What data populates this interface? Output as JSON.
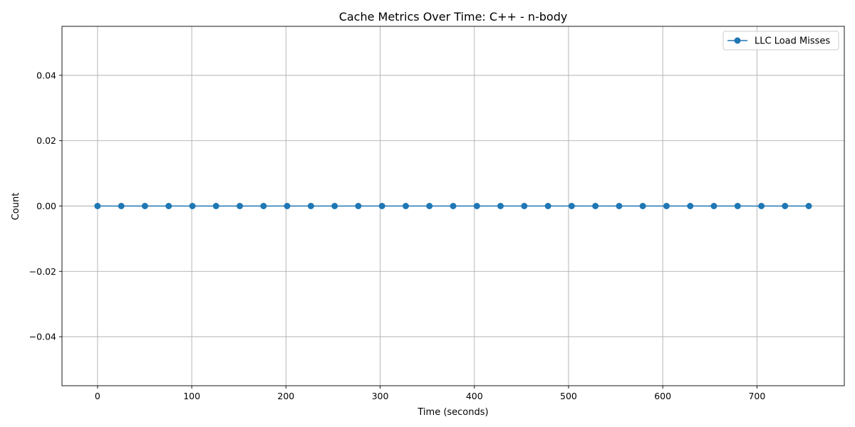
{
  "chart_data": {
    "type": "line",
    "title": "Cache Metrics Over Time: C++ - n-body",
    "xlabel": "Time (seconds)",
    "ylabel": "Count",
    "xlim": [
      -37.75,
      792.75
    ],
    "ylim": [
      -0.055,
      0.055
    ],
    "xticks": [
      0,
      100,
      200,
      300,
      400,
      500,
      600,
      700
    ],
    "xtick_labels": [
      "0",
      "100",
      "200",
      "300",
      "400",
      "500",
      "600",
      "700"
    ],
    "yticks": [
      -0.04,
      -0.02,
      0.0,
      0.02,
      0.04
    ],
    "ytick_labels": [
      "−0.04",
      "−0.02",
      "0.00",
      "0.02",
      "0.04"
    ],
    "grid": true,
    "legend_position": "top-right",
    "series": [
      {
        "name": "LLC Load Misses",
        "color": "#1f77b4",
        "marker": "circle",
        "x": [
          0,
          25.2,
          50.3,
          75.5,
          100.7,
          125.8,
          151,
          176.2,
          201.3,
          226.5,
          251.7,
          276.8,
          302,
          327.2,
          352.3,
          377.5,
          402.7,
          427.8,
          453,
          478.2,
          503.3,
          528.5,
          553.7,
          578.8,
          604,
          629.2,
          654.3,
          679.5,
          704.7,
          729.8,
          755
        ],
        "y": [
          0,
          0,
          0,
          0,
          0,
          0,
          0,
          0,
          0,
          0,
          0,
          0,
          0,
          0,
          0,
          0,
          0,
          0,
          0,
          0,
          0,
          0,
          0,
          0,
          0,
          0,
          0,
          0,
          0,
          0,
          0
        ]
      }
    ]
  }
}
